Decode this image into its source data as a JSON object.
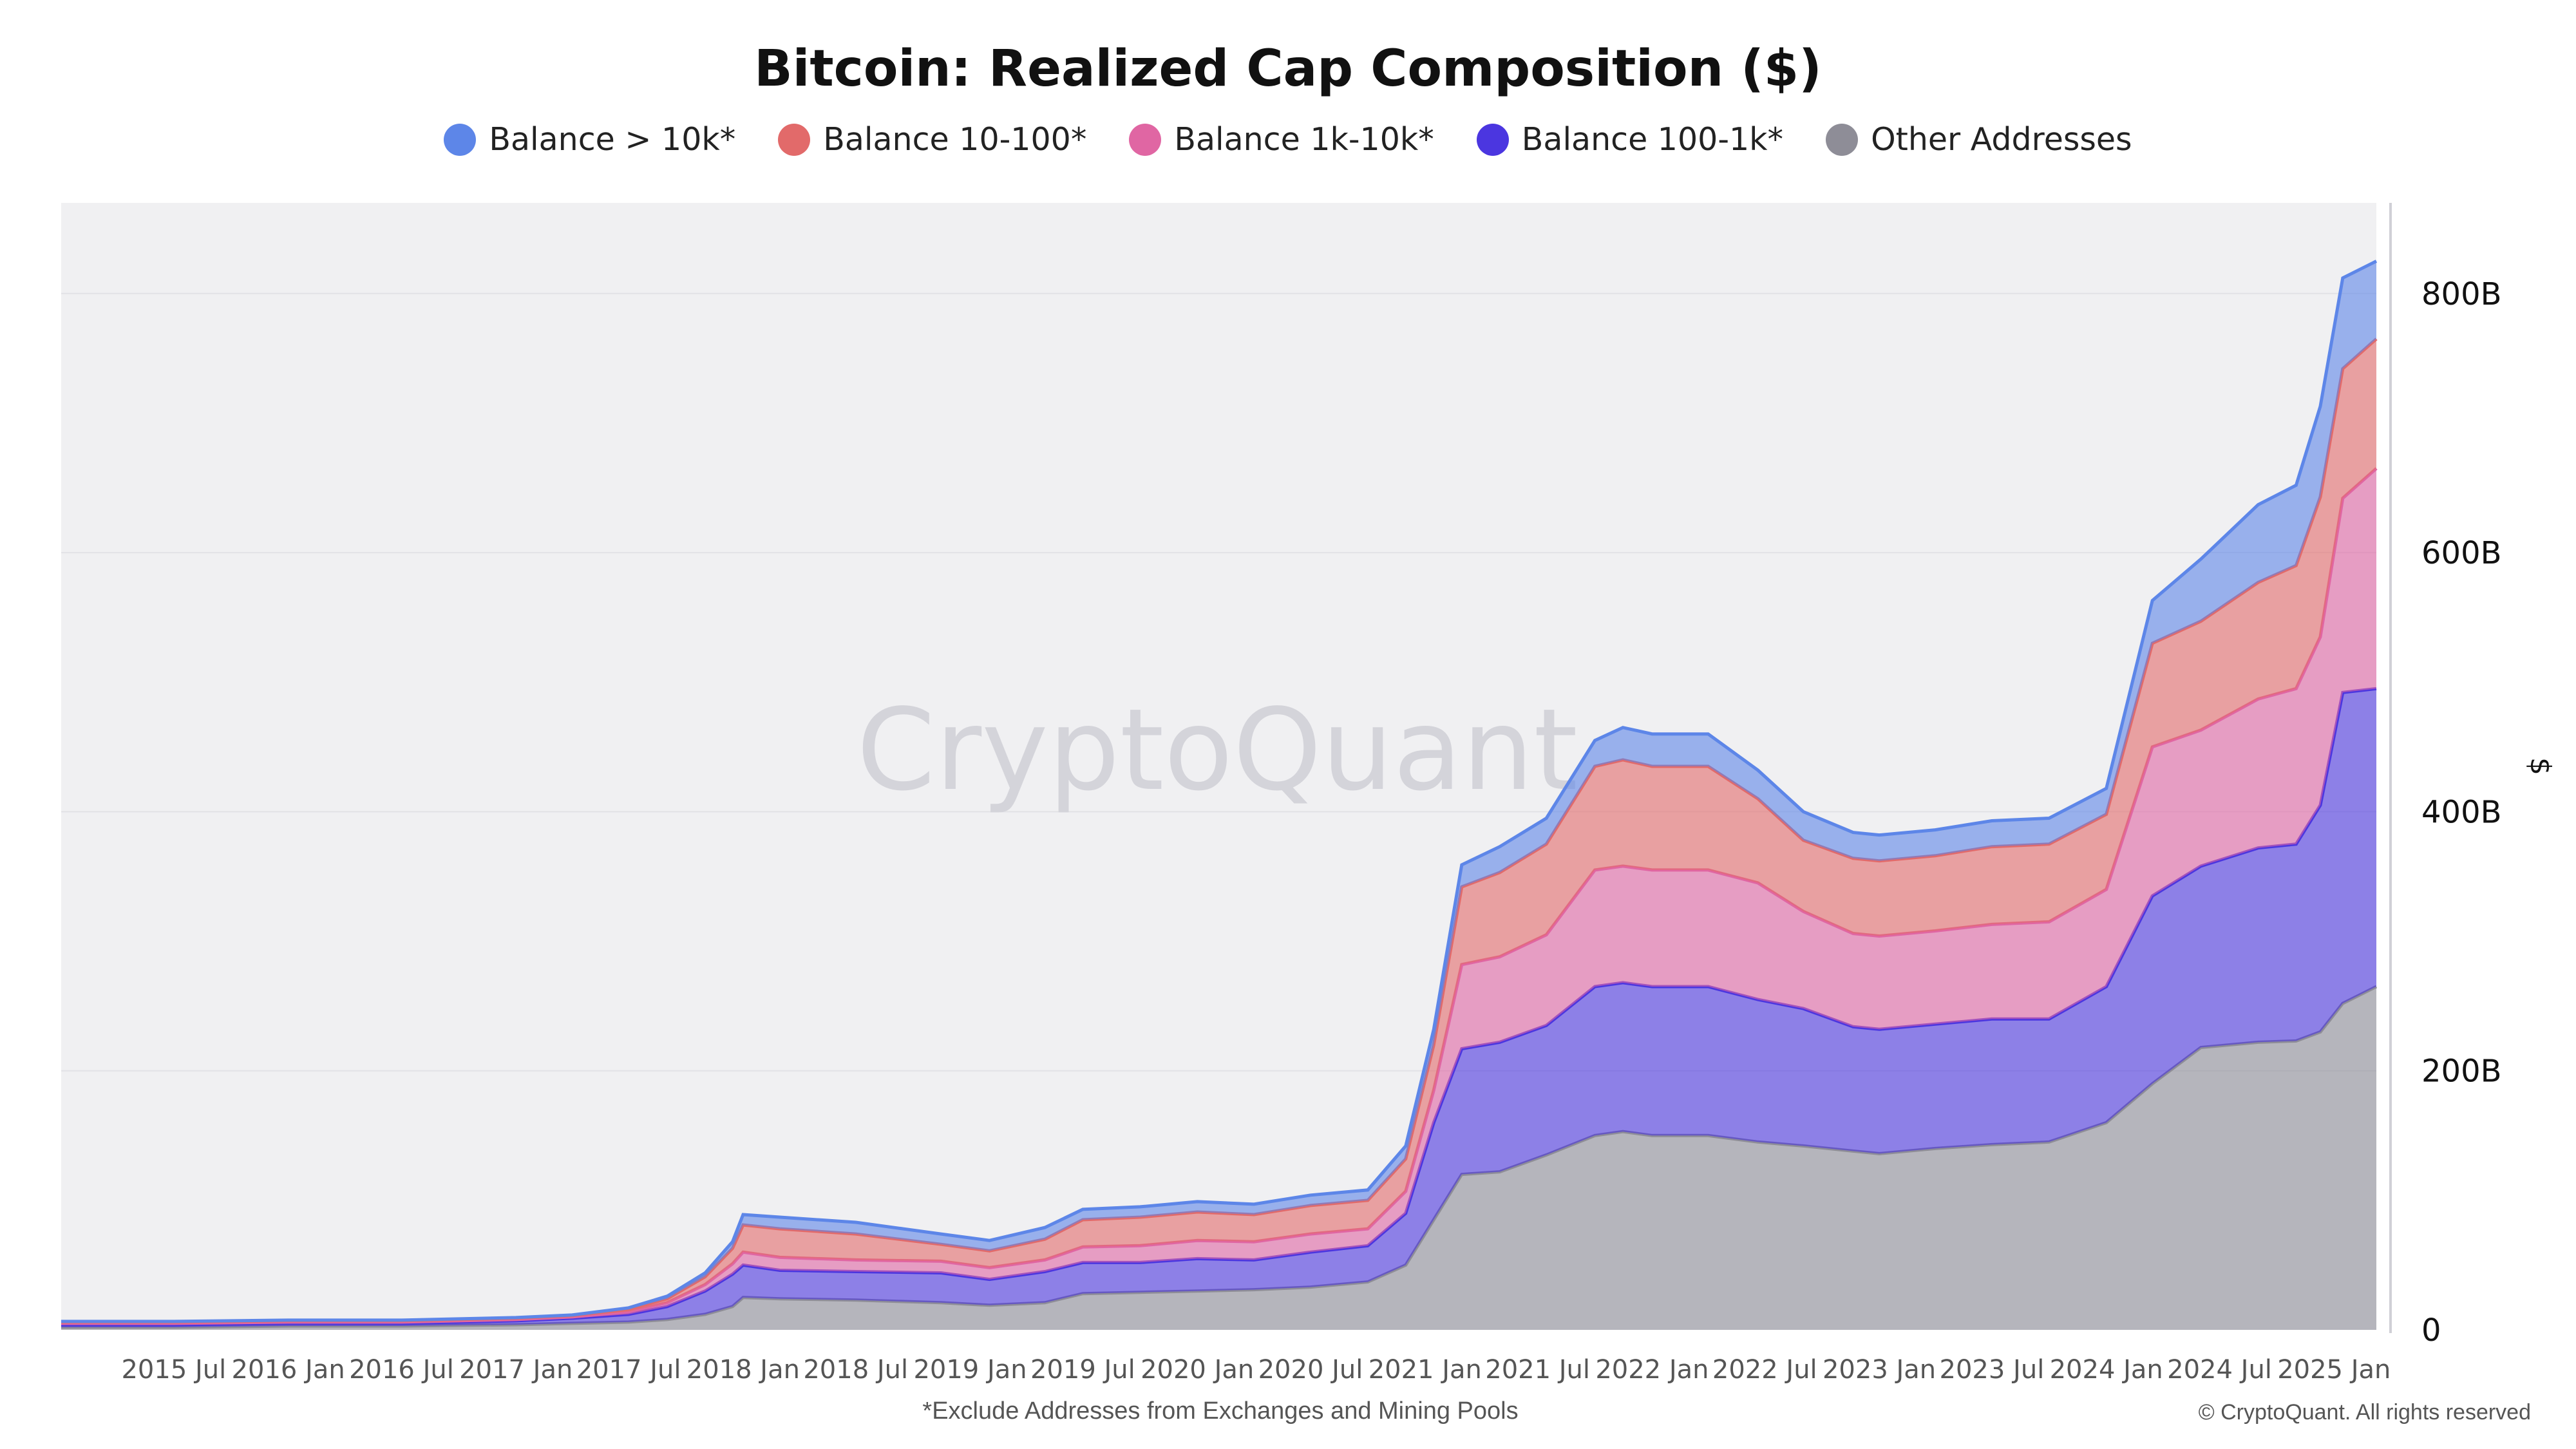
{
  "chart_data": {
    "type": "area",
    "stacked": true,
    "title": "Bitcoin: Realized Cap Composition ($)",
    "footnote": "*Exclude Addresses from Exchanges and Mining Pools",
    "copyright": "© CryptoQuant. All rights reserved",
    "watermark": "CryptoQuant",
    "ylabel": "$",
    "ylim": [
      0,
      870
    ],
    "y_unit": "B",
    "y_ticks": [
      {
        "value": 0,
        "label": "0"
      },
      {
        "value": 200,
        "label": "200B"
      },
      {
        "value": 400,
        "label": "400B"
      },
      {
        "value": 600,
        "label": "600B"
      },
      {
        "value": 800,
        "label": "800B"
      }
    ],
    "x_range": [
      "2015-01-01",
      "2025-03-10"
    ],
    "x_ticks": [
      {
        "date": "2015-07-01",
        "label": "2015 Jul"
      },
      {
        "date": "2016-01-01",
        "label": "2016 Jan"
      },
      {
        "date": "2016-07-01",
        "label": "2016 Jul"
      },
      {
        "date": "2017-01-01",
        "label": "2017 Jan"
      },
      {
        "date": "2017-07-01",
        "label": "2017 Jul"
      },
      {
        "date": "2018-01-01",
        "label": "2018 Jan"
      },
      {
        "date": "2018-07-01",
        "label": "2018 Jul"
      },
      {
        "date": "2019-01-01",
        "label": "2019 Jan"
      },
      {
        "date": "2019-07-01",
        "label": "2019 Jul"
      },
      {
        "date": "2020-01-01",
        "label": "2020 Jan"
      },
      {
        "date": "2020-07-01",
        "label": "2020 Jul"
      },
      {
        "date": "2021-01-01",
        "label": "2021 Jan"
      },
      {
        "date": "2021-07-01",
        "label": "2021 Jul"
      },
      {
        "date": "2022-01-01",
        "label": "2022 Jan"
      },
      {
        "date": "2022-07-01",
        "label": "2022 Jul"
      },
      {
        "date": "2023-01-01",
        "label": "2023 Jan"
      },
      {
        "date": "2023-07-01",
        "label": "2023 Jul"
      },
      {
        "date": "2024-01-01",
        "label": "2024 Jan"
      },
      {
        "date": "2024-07-01",
        "label": "2024 Jul"
      },
      {
        "date": "2025-01-01",
        "label": "2025 Jan"
      }
    ],
    "grid": true,
    "legend_position": "top-center",
    "x": [
      "2015-01-01",
      "2015-07-01",
      "2016-01-01",
      "2016-07-01",
      "2017-01-01",
      "2017-04-01",
      "2017-07-01",
      "2017-09-01",
      "2017-11-01",
      "2017-12-15",
      "2018-01-01",
      "2018-03-01",
      "2018-07-01",
      "2018-11-15",
      "2019-02-01",
      "2019-05-01",
      "2019-07-01",
      "2019-10-01",
      "2020-01-01",
      "2020-04-01",
      "2020-07-01",
      "2020-10-01",
      "2020-12-01",
      "2021-01-15",
      "2021-03-01",
      "2021-05-01",
      "2021-07-15",
      "2021-10-01",
      "2021-11-15",
      "2022-01-01",
      "2022-04-01",
      "2022-06-20",
      "2022-09-01",
      "2022-11-20",
      "2023-01-01",
      "2023-04-01",
      "2023-07-01",
      "2023-10-01",
      "2024-01-01",
      "2024-03-15",
      "2024-06-01",
      "2024-09-01",
      "2024-11-01",
      "2024-12-10",
      "2025-01-15",
      "2025-03-10"
    ],
    "series": [
      {
        "name": "Other Addresses",
        "color": "#8e8d97",
        "values": [
          2,
          2,
          3,
          3,
          4,
          5,
          6,
          8,
          12,
          18,
          25,
          24,
          23,
          21,
          19,
          21,
          28,
          29,
          30,
          31,
          33,
          37,
          50,
          85,
          120,
          122,
          135,
          150,
          153,
          150,
          150,
          145,
          142,
          138,
          136,
          140,
          143,
          145,
          160,
          190,
          218,
          222,
          223,
          230,
          252,
          265
        ]
      },
      {
        "name": "Balance 100-1k*",
        "color": "#4b36e0",
        "values": [
          2,
          2,
          2,
          2,
          3,
          4,
          6,
          10,
          18,
          25,
          25,
          22,
          22,
          23,
          20,
          24,
          24,
          23,
          25,
          23,
          27,
          28,
          40,
          75,
          97,
          100,
          100,
          115,
          115,
          115,
          115,
          110,
          106,
          96,
          96,
          96,
          97,
          95,
          105,
          145,
          140,
          150,
          152,
          175,
          240,
          230
        ]
      },
      {
        "name": "Balance 1k-10k*",
        "color": "#e066a3",
        "values": [
          1,
          1,
          1,
          1,
          1,
          1,
          2,
          3,
          5,
          8,
          10,
          10,
          9,
          9,
          9,
          9,
          12,
          13,
          14,
          14,
          14,
          13,
          17,
          25,
          65,
          66,
          70,
          90,
          90,
          90,
          90,
          90,
          75,
          72,
          72,
          72,
          73,
          75,
          75,
          115,
          105,
          115,
          120,
          130,
          150,
          170
        ]
      },
      {
        "name": "Balance 10-100*",
        "color": "#e26a6a",
        "values": [
          1,
          1,
          1,
          1,
          1,
          1,
          2,
          3,
          6,
          12,
          21,
          22,
          20,
          13,
          13,
          16,
          21,
          22,
          22,
          21,
          22,
          22,
          25,
          35,
          60,
          65,
          70,
          80,
          82,
          80,
          80,
          65,
          55,
          58,
          58,
          58,
          60,
          60,
          58,
          80,
          84,
          90,
          95,
          108,
          100,
          100
        ]
      },
      {
        "name": "Balance > 10k*",
        "color": "#5d86e8",
        "values": [
          0.5,
          0.5,
          0.5,
          0.5,
          0.5,
          0.5,
          1,
          2,
          3,
          5,
          8,
          9,
          9,
          8,
          8,
          9,
          8,
          8,
          8,
          8,
          8,
          8,
          10,
          12,
          17,
          20,
          20,
          20,
          25,
          25,
          25,
          22,
          22,
          20,
          20,
          20,
          20,
          20,
          20,
          33,
          48,
          60,
          62,
          70,
          70,
          60
        ]
      }
    ],
    "legend_order": [
      "Balance > 10k*",
      "Balance 10-100*",
      "Balance 1k-10k*",
      "Balance 100-1k*",
      "Other Addresses"
    ]
  }
}
